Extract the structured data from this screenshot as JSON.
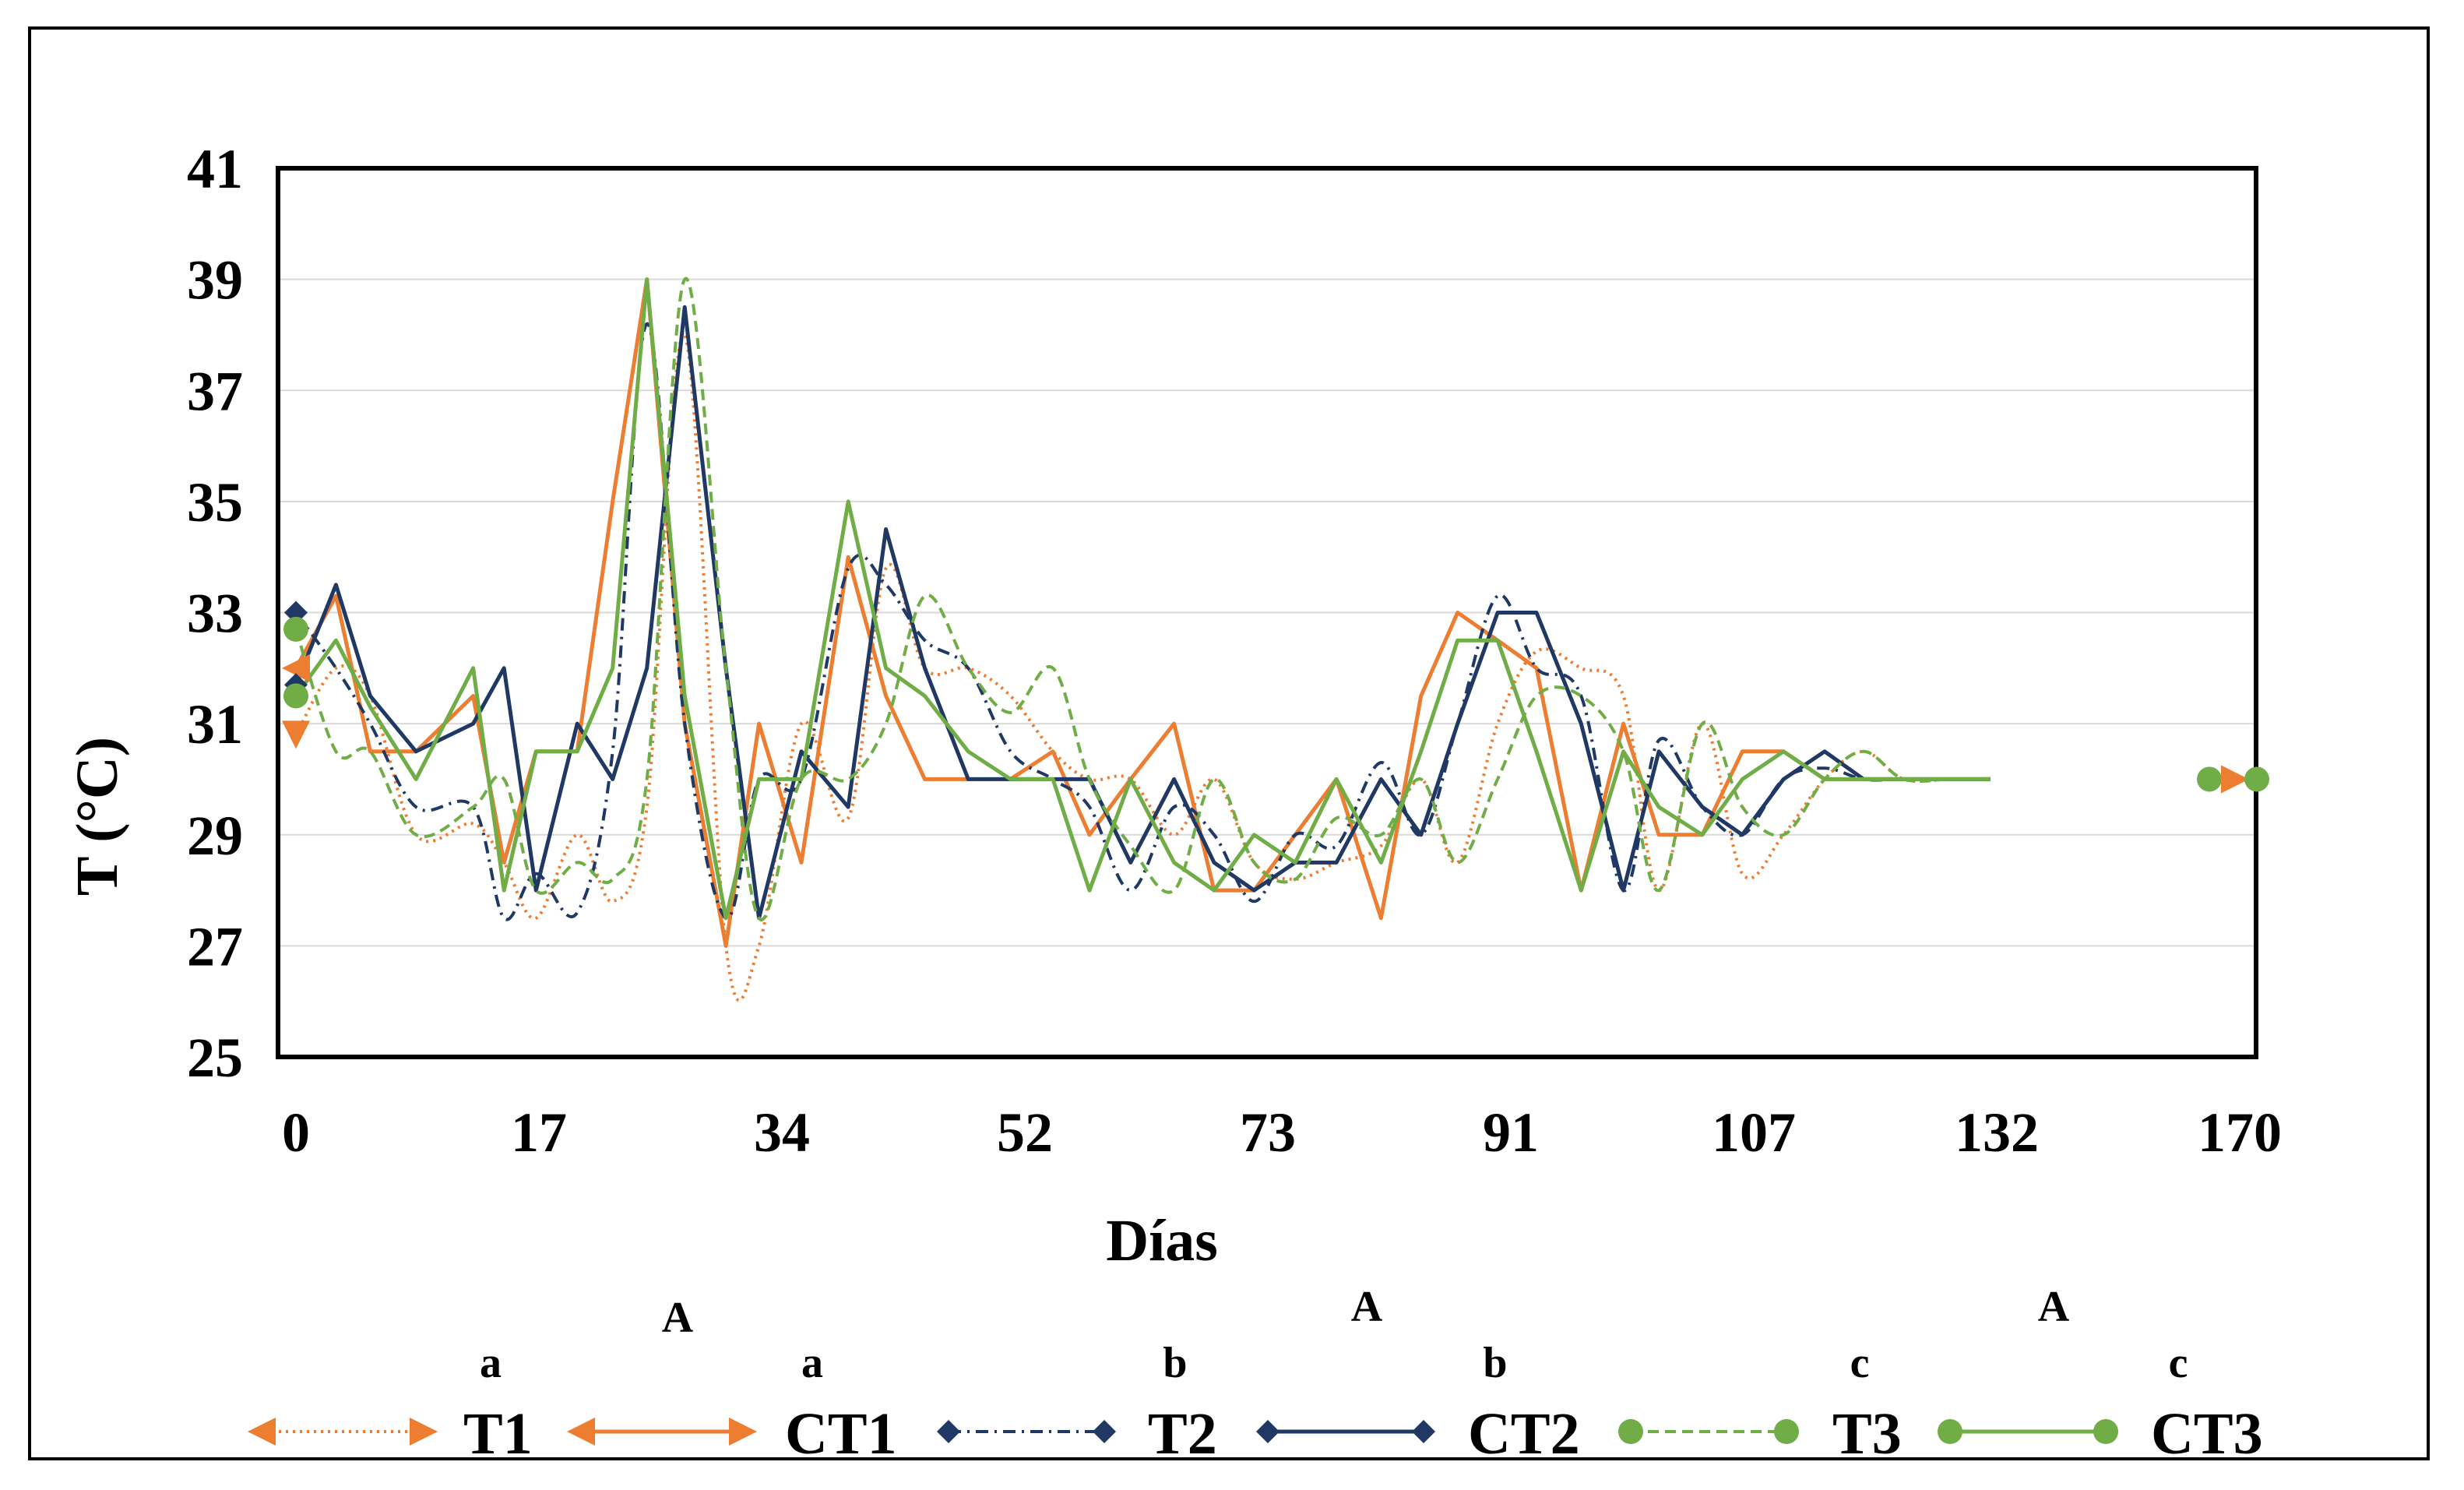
{
  "chart_data": {
    "type": "line",
    "title": "",
    "xlabel": "Días",
    "ylabel": "T (°C)",
    "ylim": [
      25,
      41
    ],
    "yticks": [
      25,
      27,
      29,
      31,
      33,
      35,
      37,
      39,
      41
    ],
    "xlim": [
      0,
      170
    ],
    "x_tick_labels": [
      "0",
      "17",
      "34",
      "52",
      "73",
      "91",
      "107",
      "132",
      "170"
    ],
    "grid": "horizontal",
    "colors": {
      "orange": "#ED7D31",
      "navy": "#203864",
      "green": "#70AD47",
      "gridline": "#D9D9D9"
    },
    "series": [
      {
        "name": "T1",
        "color": "#ED7D31",
        "style": "dotted",
        "smooth": true,
        "marker": "arrow-orange",
        "x": [
          0,
          3.5,
          6.5,
          10.5,
          15.5,
          18.2,
          21,
          24.6,
          27.7,
          30.7,
          34,
          37.6,
          40.5,
          44.2,
          48.3,
          51.6,
          55,
          58.8,
          62.5,
          66.2,
          69.4,
          73,
          76.8,
          80.3,
          83.8,
          87.4,
          91,
          94.9,
          98.4,
          101.6,
          105.1,
          108.5,
          112.4,
          116.1,
          119.2,
          123,
          126.5,
          130.1,
          133.7,
          137.1,
          140.6,
          144.7,
          148.2
        ],
        "values": [
          30.8,
          32,
          31.5,
          29,
          29.2,
          28.5,
          27.5,
          29,
          27.8,
          29.5,
          38,
          27,
          27,
          31,
          29.3,
          33.8,
          32,
          32,
          31.5,
          30.5,
          30,
          30,
          29,
          30,
          28.5,
          28.2,
          28.5,
          28.8,
          30,
          28.5,
          31,
          32.3,
          32,
          31.5,
          28,
          31,
          28.3,
          29,
          30,
          30.5,
          30,
          30,
          30
        ]
      },
      {
        "name": "CT1",
        "color": "#ED7D31",
        "style": "solid",
        "smooth": false,
        "marker": "arrow-orange",
        "x": [
          0,
          3.5,
          6.5,
          10.5,
          15.5,
          18.2,
          21,
          24.6,
          27.7,
          30.7,
          34,
          37.6,
          40.5,
          44.2,
          48.3,
          51.6,
          55,
          58.8,
          62.5,
          66.2,
          69.4,
          73,
          76.8,
          80.3,
          83.8,
          87.4,
          91,
          94.9,
          98.4,
          101.6,
          105.1,
          108.5,
          112.4,
          116.1,
          119.2,
          123,
          126.5,
          130.1,
          133.7,
          137.1,
          140.6,
          144.7,
          148.2
        ],
        "values": [
          32,
          33.3,
          30.5,
          30.5,
          31.5,
          28.5,
          30.5,
          30.5,
          35,
          39,
          31,
          27,
          31,
          28.5,
          34,
          31.5,
          30,
          30,
          30,
          30.5,
          29,
          30,
          31,
          28,
          28,
          29,
          30,
          27.5,
          31.5,
          33,
          32.5,
          32,
          28,
          31,
          29,
          29,
          30.5,
          30.5,
          30,
          30,
          30,
          30,
          30
        ]
      },
      {
        "name": "T2",
        "color": "#203864",
        "style": "dashdot",
        "smooth": true,
        "marker": "diamond-navy",
        "x": [
          0,
          3.5,
          6.5,
          10.5,
          15.5,
          18.2,
          21,
          24.6,
          27.7,
          30.7,
          34,
          37.6,
          40.5,
          44.2,
          48.3,
          51.6,
          55,
          58.8,
          62.5,
          66.2,
          69.4,
          73,
          76.8,
          80.3,
          83.8,
          87.4,
          91,
          94.9,
          98.4,
          101.6,
          105.1,
          108.5,
          112.4,
          116.1,
          119.2,
          123,
          126.5,
          130.1,
          133.7,
          137.1,
          140.6,
          144.7,
          148.2
        ],
        "values": [
          33,
          32,
          31,
          29.5,
          29.5,
          27.5,
          28.3,
          27.6,
          30.5,
          38.2,
          31,
          27.5,
          30,
          30,
          33.8,
          33.5,
          32.5,
          32,
          30.5,
          30,
          29.5,
          28,
          29.5,
          29,
          27.8,
          29,
          28.8,
          30.3,
          29,
          31,
          33.3,
          32,
          31.5,
          28,
          30.7,
          29.5,
          29,
          30,
          30.2,
          30,
          30,
          30,
          30
        ]
      },
      {
        "name": "CT2",
        "color": "#203864",
        "style": "solid",
        "smooth": false,
        "marker": "diamond-navy",
        "x": [
          0,
          3.5,
          6.5,
          10.5,
          15.5,
          18.2,
          21,
          24.6,
          27.7,
          30.7,
          34,
          37.6,
          40.5,
          44.2,
          48.3,
          51.6,
          55,
          58.8,
          62.5,
          66.2,
          69.4,
          73,
          76.8,
          80.3,
          83.8,
          87.4,
          91,
          94.9,
          98.4,
          101.6,
          105.1,
          108.5,
          112.4,
          116.1,
          119.2,
          123,
          126.5,
          130.1,
          133.7,
          137.1,
          140.6,
          144.7,
          148.2
        ],
        "values": [
          31.7,
          33.5,
          31.5,
          30.5,
          31,
          32,
          28,
          31,
          30,
          32,
          38.5,
          32,
          27.5,
          30.5,
          29.5,
          34.5,
          32,
          30,
          30,
          30,
          30,
          28.5,
          30,
          28.5,
          28,
          28.5,
          28.5,
          30,
          29,
          31,
          33,
          33,
          31,
          28,
          30.5,
          29.5,
          29,
          30,
          30.5,
          30,
          30,
          30,
          30
        ]
      },
      {
        "name": "T3",
        "color": "#70AD47",
        "style": "dashed",
        "smooth": true,
        "marker": "circle-green",
        "x": [
          0,
          3.5,
          6.5,
          10.5,
          15.5,
          18.2,
          21,
          24.6,
          27.7,
          30.7,
          34,
          37.6,
          40.5,
          44.2,
          48.3,
          51.6,
          55,
          58.8,
          62.5,
          66.2,
          69.4,
          73,
          76.8,
          80.3,
          83.8,
          87.4,
          91,
          94.9,
          98.4,
          101.6,
          105.1,
          108.5,
          112.4,
          116.1,
          119.2,
          123,
          126.5,
          130.1,
          133.7,
          137.1,
          140.6,
          144.7,
          148.2
        ],
        "values": [
          32.7,
          30.5,
          30.5,
          29,
          29.5,
          30,
          28,
          28.5,
          28.2,
          30,
          39,
          32,
          27.5,
          30,
          30,
          31,
          33.3,
          32,
          31.2,
          32,
          30,
          28.8,
          28,
          30,
          28.5,
          28.2,
          29.3,
          29,
          30,
          28.5,
          30,
          31.5,
          31.5,
          30.5,
          28,
          31,
          29.5,
          29,
          30,
          30.5,
          30,
          30,
          30
        ]
      },
      {
        "name": "CT3",
        "color": "#70AD47",
        "style": "solid",
        "smooth": false,
        "marker": "circle-green",
        "x": [
          0,
          3.5,
          6.5,
          10.5,
          15.5,
          18.2,
          21,
          24.6,
          27.7,
          30.7,
          34,
          37.6,
          40.5,
          44.2,
          48.3,
          51.6,
          55,
          58.8,
          62.5,
          66.2,
          69.4,
          73,
          76.8,
          80.3,
          83.8,
          87.4,
          91,
          94.9,
          98.4,
          101.6,
          105.1,
          108.5,
          112.4,
          116.1,
          119.2,
          123,
          126.5,
          130.1,
          133.7,
          137.1,
          140.6,
          144.7,
          148.2
        ],
        "values": [
          31.5,
          32.5,
          31.3,
          30,
          32,
          28,
          30.5,
          30.5,
          32,
          39,
          31.5,
          27.5,
          30,
          30,
          35,
          32,
          31.5,
          30.5,
          30,
          30,
          28,
          30,
          28.5,
          28,
          29,
          28.5,
          30,
          28.5,
          30.5,
          32.5,
          32.5,
          30.5,
          28,
          30.5,
          29.5,
          29,
          30,
          30.5,
          30,
          30,
          30,
          30,
          30
        ]
      }
    ],
    "legend": {
      "placement": "bottom",
      "items": [
        {
          "name": "T1",
          "letter": "a"
        },
        {
          "name": "CT1",
          "letter": "a"
        },
        {
          "name": "T2",
          "letter": "b"
        },
        {
          "name": "CT2",
          "letter": "b"
        },
        {
          "name": "T3",
          "letter": "c"
        },
        {
          "name": "CT3",
          "letter": "c"
        }
      ],
      "group_letters": [
        "A",
        "A",
        "A"
      ]
    }
  }
}
